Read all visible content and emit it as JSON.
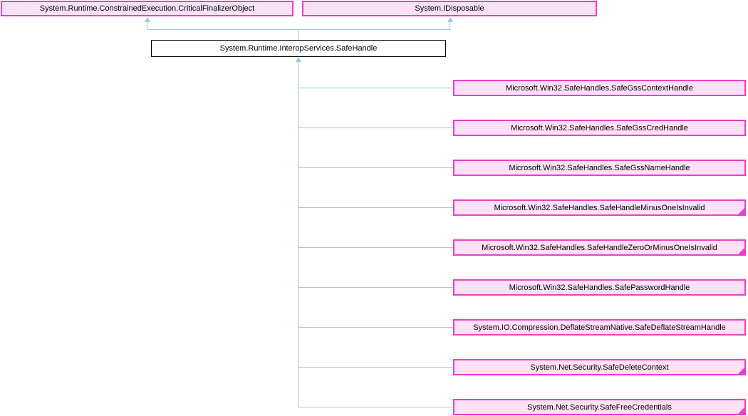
{
  "diagram": {
    "type": "class-inheritance-diagram",
    "colors": {
      "node_fill": "#FFE1F7",
      "node_border": "#EE3CCE",
      "root_fill": "#FFFFFF",
      "root_border": "#000000",
      "edge": "#9EC7E6"
    },
    "parents": [
      {
        "label": "System.Runtime.ConstrainedExecution.CriticalFinalizerObject"
      },
      {
        "label": "System.IDisposable"
      }
    ],
    "root": {
      "label": "System.Runtime.InteropServices.SafeHandle"
    },
    "children": [
      {
        "label": "Microsoft.Win32.SafeHandles.SafeGssContextHandle",
        "has_subclasses": false
      },
      {
        "label": "Microsoft.Win32.SafeHandles.SafeGssCredHandle",
        "has_subclasses": false
      },
      {
        "label": "Microsoft.Win32.SafeHandles.SafeGssNameHandle",
        "has_subclasses": false
      },
      {
        "label": "Microsoft.Win32.SafeHandles.SafeHandleMinusOneIsInvalid",
        "has_subclasses": true
      },
      {
        "label": "Microsoft.Win32.SafeHandles.SafeHandleZeroOrMinusOneIsInvalid",
        "has_subclasses": true
      },
      {
        "label": "Microsoft.Win32.SafeHandles.SafePasswordHandle",
        "has_subclasses": false
      },
      {
        "label": "System.IO.Compression.DeflateStreamNative.SafeDeflateStreamHandle",
        "has_subclasses": false
      },
      {
        "label": "System.Net.Security.SafeDeleteContext",
        "has_subclasses": true
      },
      {
        "label": "System.Net.Security.SafeFreeCredentials",
        "has_subclasses": true
      }
    ]
  }
}
